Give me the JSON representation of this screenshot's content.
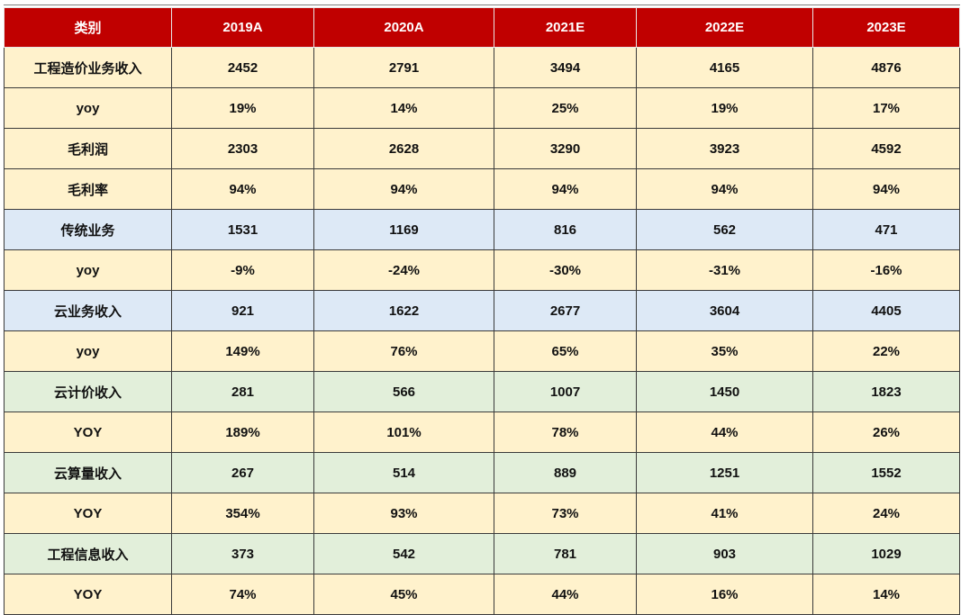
{
  "table": {
    "headers": [
      "类别",
      "2019A",
      "2020A",
      "2021E",
      "2022E",
      "2023E"
    ],
    "rows": [
      {
        "band": "yellow",
        "cells": [
          "工程造价业务收入",
          "2452",
          "2791",
          "3494",
          "4165",
          "4876"
        ]
      },
      {
        "band": "yellow",
        "cells": [
          "yoy",
          "19%",
          "14%",
          "25%",
          "19%",
          "17%"
        ]
      },
      {
        "band": "yellow",
        "cells": [
          "毛利润",
          "2303",
          "2628",
          "3290",
          "3923",
          "4592"
        ]
      },
      {
        "band": "yellow",
        "cells": [
          "毛利率",
          "94%",
          "94%",
          "94%",
          "94%",
          "94%"
        ]
      },
      {
        "band": "blue",
        "cells": [
          "传统业务",
          "1531",
          "1169",
          "816",
          "562",
          "471"
        ]
      },
      {
        "band": "yellow",
        "cells": [
          "yoy",
          "-9%",
          "-24%",
          "-30%",
          "-31%",
          "-16%"
        ]
      },
      {
        "band": "blue",
        "cells": [
          "云业务收入",
          "921",
          "1622",
          "2677",
          "3604",
          "4405"
        ]
      },
      {
        "band": "yellow",
        "cells": [
          "yoy",
          "149%",
          "76%",
          "65%",
          "35%",
          "22%"
        ]
      },
      {
        "band": "green",
        "cells": [
          "云计价收入",
          "281",
          "566",
          "1007",
          "1450",
          "1823"
        ]
      },
      {
        "band": "yellow",
        "cells": [
          "YOY",
          "189%",
          "101%",
          "78%",
          "44%",
          "26%"
        ]
      },
      {
        "band": "green",
        "cells": [
          "云算量收入",
          "267",
          "514",
          "889",
          "1251",
          "1552"
        ]
      },
      {
        "band": "yellow",
        "cells": [
          "YOY",
          "354%",
          "93%",
          "73%",
          "41%",
          "24%"
        ]
      },
      {
        "band": "green",
        "cells": [
          "工程信息收入",
          "373",
          "542",
          "781",
          "903",
          "1029"
        ]
      },
      {
        "band": "yellow",
        "cells": [
          "YOY",
          "74%",
          "45%",
          "44%",
          "16%",
          "14%"
        ]
      }
    ]
  },
  "colors": {
    "header_bg": "#c00000",
    "header_text": "#ffffff",
    "yellow_band": "#fff2cc",
    "blue_band": "#dde9f6",
    "green_band": "#e2efda"
  }
}
